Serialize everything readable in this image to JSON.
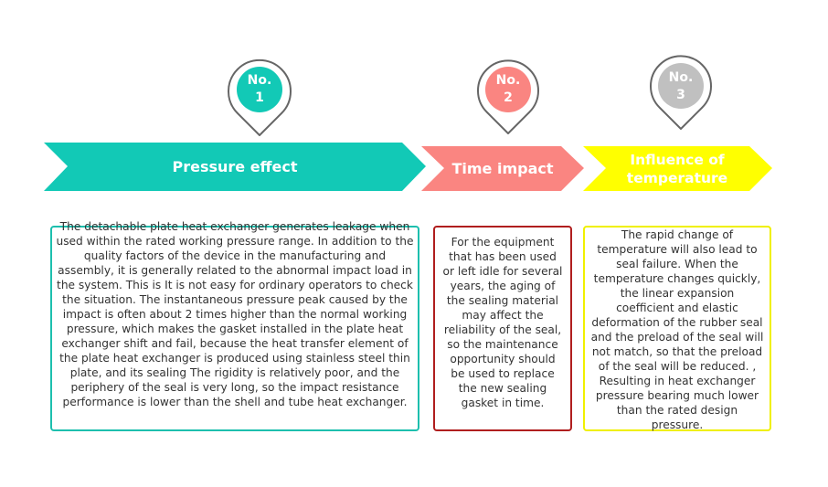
{
  "steps": [
    {
      "badge_label": "No.",
      "badge_number": "1",
      "title": "Pressure effect",
      "description": "The detachable plate heat exchanger generates leakage when used within the rated working pressure range. In addition to the quality factors of the device in the manufacturing and assembly, it is generally related to the abnormal impact load in the system. This is It is not easy for ordinary operators to check the situation. The instantaneous pressure peak caused by the impact is often about 2 times higher than the normal working pressure, which makes the gasket installed in the plate heat exchanger shift and fail, because the heat transfer element of the plate heat exchanger is produced using stainless steel thin plate, and its sealing The rigidity is relatively poor, and the periphery of the seal is very long, so the impact resistance performance is lower than the shell and tube heat exchanger.",
      "color": "#12c9b6",
      "border_color": "#1dbfae"
    },
    {
      "badge_label": "No.",
      "badge_number": "2",
      "title": "Time impact",
      "description": "For the equipment that has been used or left idle for several years, the aging of the sealing material may affect the reliability of the seal, so the maintenance opportunity should be used to replace the new sealing gasket in time.",
      "color": "#fa8581",
      "border_color": "#b01e1e"
    },
    {
      "badge_label": "No.",
      "badge_number": "3",
      "title": "Influence of temperature",
      "description": "The rapid change of temperature will also lead to seal failure. When the temperature changes quickly, the linear expansion coefficient and elastic deformation of the rubber seal and the preload of the seal will not match, so that the preload of the seal will be reduced. , Resulting in heat exchanger pressure bearing much lower than the rated design pressure.",
      "color": "#ffff00",
      "border_color": "#f0f000",
      "badge_color": "#c0c0c0"
    }
  ]
}
